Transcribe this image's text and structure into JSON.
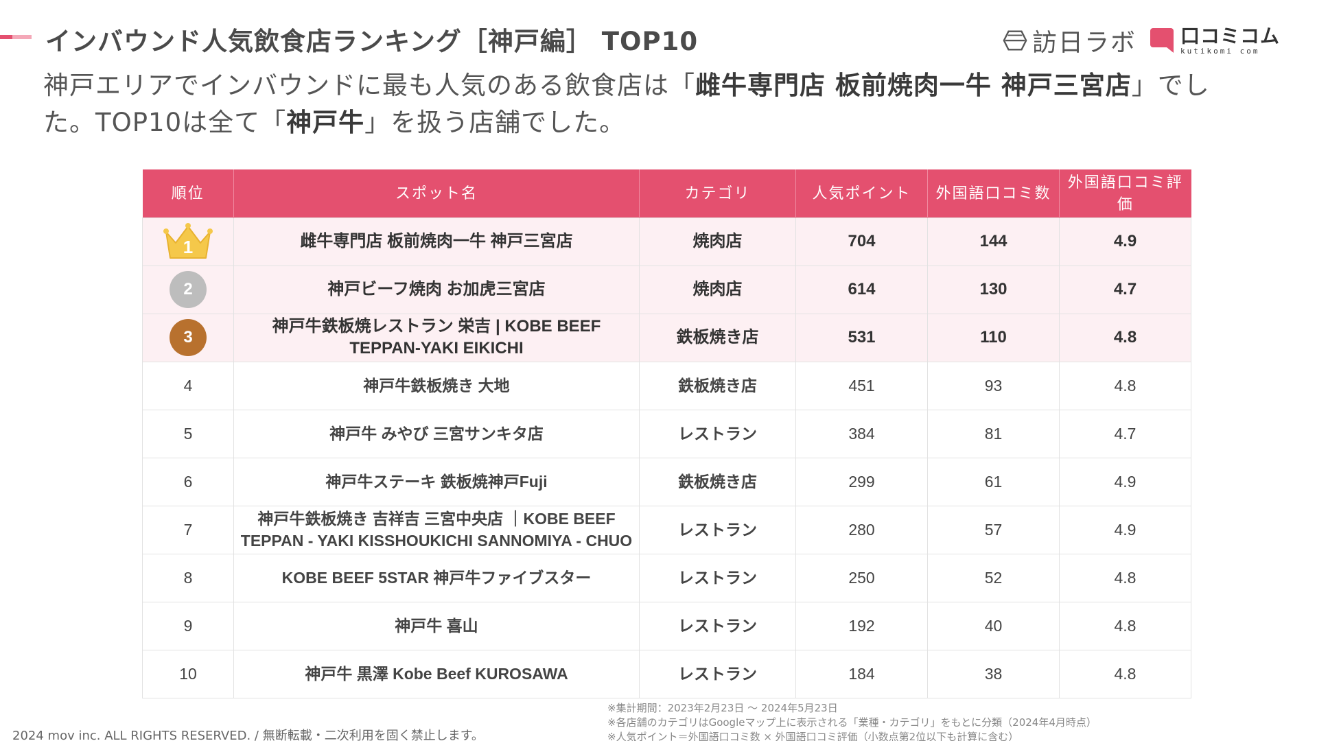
{
  "header": {
    "title": "インバウンド人気飲食店ランキング［神戸編］ TOP10",
    "logo_houni": "訪日ラボ",
    "logo_kuchikomi": "口コミコム",
    "logo_kuchikomi_sub": "kutikomi com"
  },
  "lead": {
    "part1": "神戸エリアでインバウンドに最も人気のある飲食店は「",
    "highlight1": "雌牛専門店 板前焼肉一牛 神戸三宮店",
    "part2": "」でした。TOP10は全て「",
    "highlight2": "神戸牛",
    "part3": "」を扱う店舗でした。"
  },
  "table": {
    "headers": [
      "順位",
      "スポット名",
      "カテゴリ",
      "人気ポイント",
      "外国語口コミ数",
      "外国語口コミ評価"
    ],
    "rows": [
      {
        "rank": "1",
        "name": "雌牛専門店 板前焼肉一牛 神戸三宮店",
        "category": "焼肉店",
        "points": "704",
        "reviews": "144",
        "rating": "4.9"
      },
      {
        "rank": "2",
        "name": "神戸ビーフ焼肉 お加虎三宮店",
        "category": "焼肉店",
        "points": "614",
        "reviews": "130",
        "rating": "4.7"
      },
      {
        "rank": "3",
        "name": "神戸牛鉄板焼レストラン 栄吉 | KOBE BEEF TEPPAN-YAKI EIKICHI",
        "category": "鉄板焼き店",
        "points": "531",
        "reviews": "110",
        "rating": "4.8"
      },
      {
        "rank": "4",
        "name": "神戸牛鉄板焼き 大地",
        "category": "鉄板焼き店",
        "points": "451",
        "reviews": "93",
        "rating": "4.8"
      },
      {
        "rank": "5",
        "name": "神戸牛 みやび 三宮サンキタ店",
        "category": "レストラン",
        "points": "384",
        "reviews": "81",
        "rating": "4.7"
      },
      {
        "rank": "6",
        "name": "神戸牛ステーキ 鉄板焼神戸Fuji",
        "category": "鉄板焼き店",
        "points": "299",
        "reviews": "61",
        "rating": "4.9"
      },
      {
        "rank": "7",
        "name": "神戸牛鉄板焼き 吉祥吉 三宮中央店 ｜KOBE BEEF TEPPAN - YAKI KISSHOUKICHI SANNOMIYA - CHUO",
        "category": "レストラン",
        "points": "280",
        "reviews": "57",
        "rating": "4.9"
      },
      {
        "rank": "8",
        "name": "KOBE BEEF 5STAR 神戸牛ファイブスター",
        "category": "レストラン",
        "points": "250",
        "reviews": "52",
        "rating": "4.8"
      },
      {
        "rank": "9",
        "name": "神戸牛 喜山",
        "category": "レストラン",
        "points": "192",
        "reviews": "40",
        "rating": "4.8"
      },
      {
        "rank": "10",
        "name": "神戸牛 黒澤 Kobe Beef KUROSAWA",
        "category": "レストラン",
        "points": "184",
        "reviews": "38",
        "rating": "4.8"
      }
    ]
  },
  "notes": [
    "※集計期間：2023年2月23日 〜 2024年5月23日",
    "※各店舗のカテゴリはGoogleマップ上に表示される「業種・カテゴリ」をもとに分類（2024年4月時点）",
    "※人気ポイント＝外国語口コミ数 × 外国語口コミ評価（小数点第2位以下も計算に含む）"
  ],
  "footer": {
    "copyright": "2024 mov inc. ALL RIGHTS RESERVED. / 無断転載・二次利用を固く禁止します。"
  },
  "colors": {
    "accent": "#e4506f",
    "row_highlight": "#fdf0f3",
    "gold": "#f5c84a",
    "silver": "#bdbdbd",
    "bronze": "#b8712e"
  }
}
